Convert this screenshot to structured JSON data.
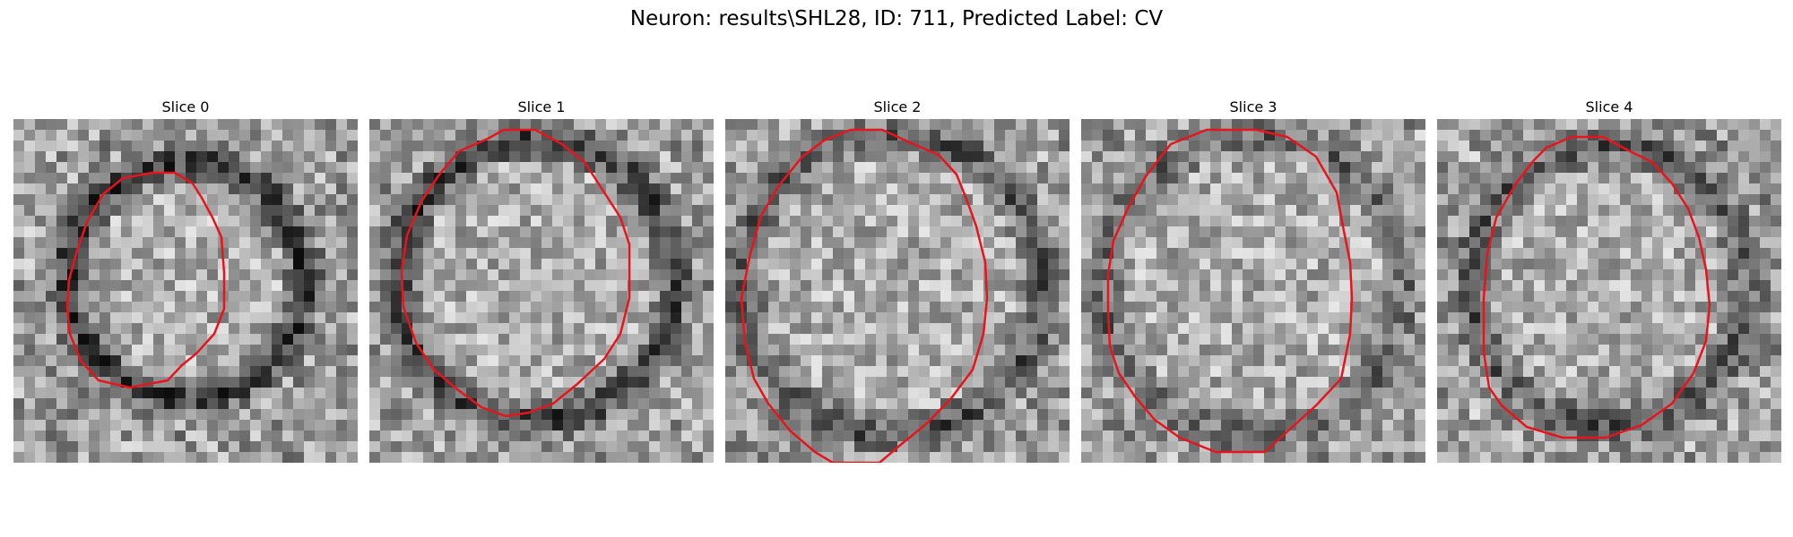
{
  "figure": {
    "suptitle": "Neuron: results\\SHL28, ID: 711, Predicted Label: CV",
    "outline_color": "#e8141b"
  },
  "panels": [
    {
      "title": "Slice 0"
    },
    {
      "title": "Slice 1"
    },
    {
      "title": "Slice 2"
    },
    {
      "title": "Slice 3"
    },
    {
      "title": "Slice 4"
    }
  ]
}
